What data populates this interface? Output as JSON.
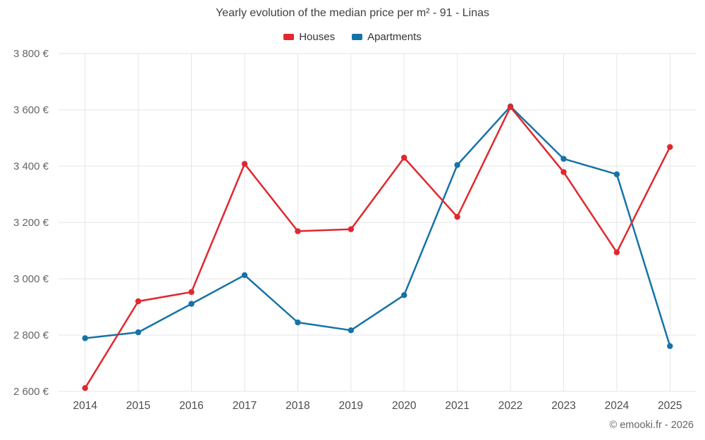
{
  "footer": "© emooki.fr - 2026",
  "chart_data": {
    "type": "line",
    "title": "Yearly evolution of the median price per m² - 91 - Linas",
    "categories": [
      "2014",
      "2015",
      "2016",
      "2017",
      "2018",
      "2019",
      "2020",
      "2021",
      "2022",
      "2023",
      "2024",
      "2025"
    ],
    "series": [
      {
        "name": "Houses",
        "color": "#e0282e",
        "values": [
          2612,
          2920,
          2953,
          3408,
          3169,
          3176,
          3430,
          3220,
          3610,
          3379,
          3094,
          3468
        ]
      },
      {
        "name": "Apartments",
        "color": "#1573a7",
        "values": [
          2789,
          2810,
          2911,
          3013,
          2845,
          2817,
          2942,
          3404,
          3612,
          3426,
          3371,
          2761
        ]
      }
    ],
    "ylim": [
      2600,
      3800
    ],
    "ytick_step": 200,
    "ytick_labels": [
      "2 600 €",
      "2 800 €",
      "3 000 €",
      "3 200 €",
      "3 400 €",
      "3 600 €",
      "3 800 €"
    ],
    "currency": "€",
    "grid": true,
    "legend_position": "top",
    "marker": "circle"
  }
}
